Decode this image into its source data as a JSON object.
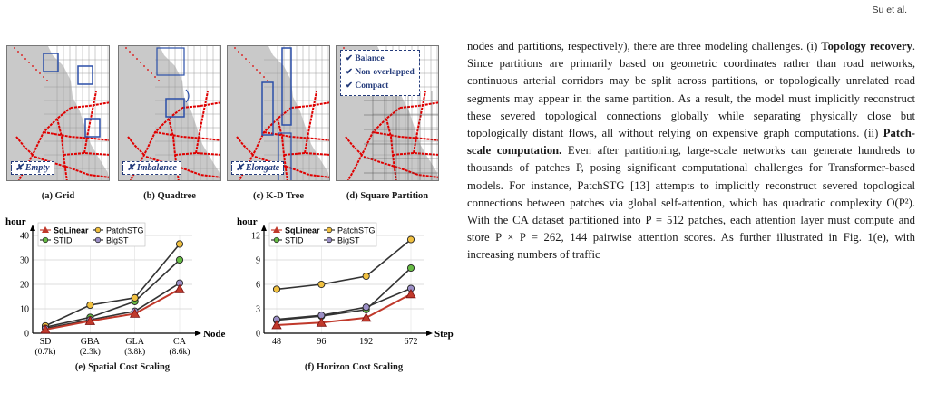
{
  "header": {
    "running_title": "Su et al."
  },
  "figure": {
    "panels": [
      {
        "caption": "(a) Grid",
        "tag": "Empty"
      },
      {
        "caption": "(b) Quadtree",
        "tag": "Imbalance"
      },
      {
        "caption": "(c) K-D Tree",
        "tag": "Elongate"
      },
      {
        "caption": "(d) Square Partition",
        "checks": [
          "Balance",
          "Non-overlapped",
          "Compact"
        ]
      }
    ],
    "check_glyph": "✔",
    "cross_glyph": "✘",
    "charts": [
      {
        "caption": "(e) Spatial Cost Scaling"
      },
      {
        "caption": "(f) Horizon Cost Scaling"
      }
    ]
  },
  "chart_data": [
    {
      "type": "line",
      "title": "(e) Spatial Cost Scaling",
      "ylabel": "hour",
      "xlabel": "Node",
      "categories": [
        "SD",
        "GBA",
        "GLA",
        "CA"
      ],
      "category_sublabels": [
        "(0.7k)",
        "(2.3k)",
        "(3.8k)",
        "(8.6k)"
      ],
      "ylim": [
        0,
        40
      ],
      "yticks": [
        0,
        10,
        20,
        30,
        40
      ],
      "grid": true,
      "legend": "top-left",
      "series": [
        {
          "name": "SqLinear",
          "marker": "triangle",
          "color": "#c0392b",
          "values": [
            1.5,
            5,
            8,
            18
          ]
        },
        {
          "name": "STID",
          "marker": "circle",
          "color": "#66bb44",
          "values": [
            2.5,
            6.5,
            13,
            30
          ]
        },
        {
          "name": "PatchSTG",
          "marker": "circle",
          "color": "#f0c040",
          "values": [
            3,
            11.5,
            14.5,
            36.5
          ]
        },
        {
          "name": "BigST",
          "marker": "circle",
          "color": "#9b8fc6",
          "values": [
            2,
            5.5,
            9,
            20.5
          ]
        }
      ]
    },
    {
      "type": "line",
      "title": "(f) Horizon Cost Scaling",
      "ylabel": "hour",
      "xlabel": "Step",
      "categories": [
        "48",
        "96",
        "192",
        "672"
      ],
      "ylim": [
        0,
        12
      ],
      "yticks": [
        0,
        3,
        6,
        9,
        12
      ],
      "grid": true,
      "legend": "top-left",
      "series": [
        {
          "name": "SqLinear",
          "marker": "triangle",
          "color": "#c0392b",
          "values": [
            1,
            1.3,
            1.9,
            4.8
          ]
        },
        {
          "name": "STID",
          "marker": "circle",
          "color": "#66bb44",
          "values": [
            1.6,
            2.1,
            2.9,
            8
          ]
        },
        {
          "name": "PatchSTG",
          "marker": "circle",
          "color": "#f0c040",
          "values": [
            5.4,
            6,
            7,
            11.5
          ]
        },
        {
          "name": "BigST",
          "marker": "circle",
          "color": "#9b8fc6",
          "values": [
            1.7,
            2.2,
            3.2,
            5.5
          ]
        }
      ]
    }
  ],
  "body_text": {
    "p1_start": "nodes and partitions, respectively), there are three modeling challenges. (i) ",
    "p1_bold1": "Topology recovery",
    "p1_mid": ". Since partitions are primarily based on geometric coordinates rather than road networks, continuous arterial corridors may be split across partitions, or topologically unrelated road segments may appear in the same partition. As a result, the model must implicitly reconstruct these severed topological connections globally while separating physically close but topologically distant flows, all without relying on expensive graph computations. (ii) ",
    "p1_bold2": "Patch-scale computation.",
    "p1_end": " Even after partitioning, large-scale networks can generate hundreds to thousands of patches P, posing significant computational challenges for Transformer-based models. For instance, PatchSTG [13] attempts to implicitly reconstruct severed topological connections between patches via global self-attention, which has quadratic complexity O(P²). With the CA dataset partitioned into P = 512 patches, each attention layer must compute and store P × P = 262, 144 pairwise attention scores. As further illustrated in Fig. 1(e), with increasing numbers of traffic"
  }
}
